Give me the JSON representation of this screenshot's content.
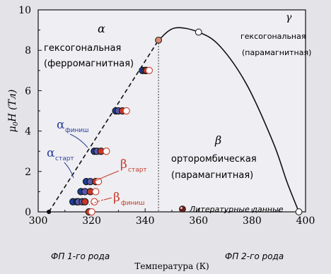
{
  "chart_data": {
    "type": "scatter",
    "xlabel": "Температура (К)",
    "ylabel_main": "μ",
    "ylabel_sub": "0",
    "ylabel_rest": "H (Тл)",
    "xlim": [
      300,
      400
    ],
    "ylim": [
      0,
      10
    ],
    "x_ticks": [
      300,
      320,
      340,
      360,
      380,
      400
    ],
    "y_ticks": [
      0,
      2,
      4,
      6,
      8,
      10
    ],
    "grid": false,
    "phase_labels": {
      "alpha": "α",
      "alpha_desc_1": "гексогональная",
      "alpha_desc_2": "(ферромагнитная)",
      "gamma": "γ",
      "gamma_desc_1": "гексогональная",
      "gamma_desc_2": "(парамагнитная)",
      "beta": "β",
      "beta_desc_1": "орторомбическая",
      "beta_desc_2": "(парамагнитная)"
    },
    "annotations": {
      "alpha_finish_sym": "α",
      "alpha_finish_sub": "финиш",
      "alpha_start_sym": "α",
      "alpha_start_sub": "старт",
      "beta_start_sym": "β",
      "beta_start_sub": "старт",
      "beta_finish_sym": "β",
      "beta_finish_sub": "финиш",
      "fp1": "ФП 1-го рода",
      "fp2": "ФП 2-го рода"
    },
    "legend": {
      "label": "Литературные данные",
      "placement": "bottom-right"
    },
    "colors": {
      "alpha_start": "#1a3f99",
      "alpha_finish": "#5a5aa8",
      "beta_start": "#c43a2a",
      "beta_finish": "#c43a2a",
      "line": "#111111",
      "point_open_edge": "#c43a2a",
      "label_red": "#c43a2a",
      "label_blue": "#2a3f9a"
    },
    "series": [
      {
        "name": "α старт",
        "x": [
          313,
          314.5,
          316,
          318,
          321,
          329,
          339
        ],
        "y": [
          0.5,
          0.5,
          1.0,
          1.5,
          3.0,
          5.0,
          7.0
        ]
      },
      {
        "name": "α финиш",
        "x": [
          315,
          316.5,
          317.5,
          319.5,
          322,
          330,
          340
        ],
        "y": [
          0.5,
          0.5,
          1.0,
          1.5,
          3.0,
          5.0,
          7.0
        ]
      },
      {
        "name": "β старт",
        "x": [
          317.5,
          319,
          319.5,
          321.5,
          323.5,
          331.5,
          340.5
        ],
        "y": [
          0.5,
          0.0,
          1.0,
          1.5,
          3.0,
          5.0,
          7.0
        ]
      },
      {
        "name": "β финиш",
        "x": [
          320,
          321,
          321.5,
          322.5,
          325.5,
          333,
          341.5
        ],
        "y": [
          0.0,
          0.5,
          1.0,
          1.5,
          3.0,
          5.0,
          7.0
        ]
      },
      {
        "name": "Литературные данные",
        "x": [
          345,
          360,
          397.5
        ],
        "y": [
          8.5,
          8.9,
          0.0
        ]
      }
    ],
    "curve_dashed": {
      "x": [
        304,
        345
      ],
      "y": [
        0.0,
        8.5
      ]
    },
    "curve_solid": {
      "x": [
        345,
        351,
        360,
        368,
        378,
        388,
        393,
        397.5
      ],
      "y": [
        8.5,
        9.1,
        8.9,
        8.2,
        6.3,
        3.4,
        1.5,
        0.0
      ]
    },
    "phase_boundary_x": 345
  }
}
